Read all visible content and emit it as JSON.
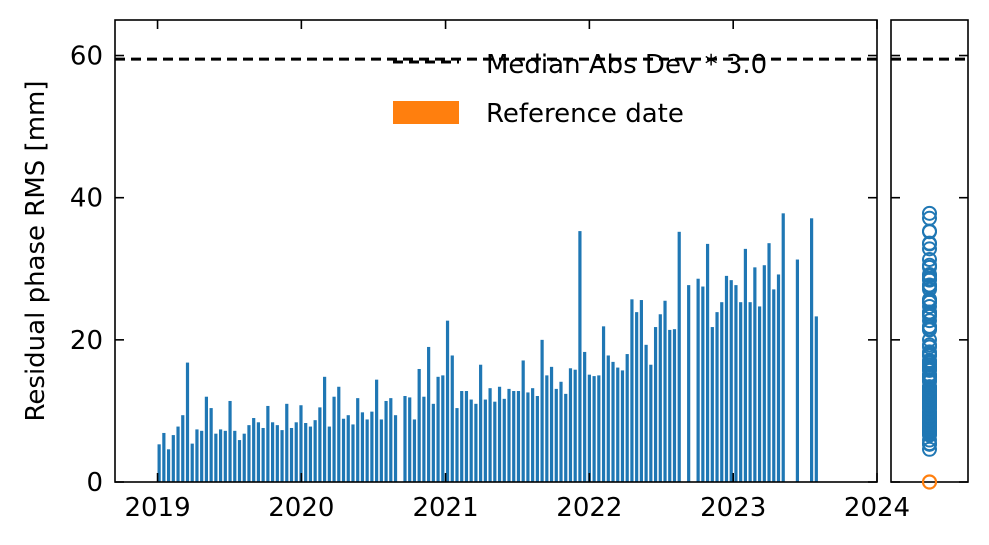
{
  "chart_data": {
    "type": "bar",
    "ylabel": "Residual phase RMS [mm]",
    "xlabel": "",
    "ylim": [
      0,
      65
    ],
    "xlim": [
      "2018-09-15",
      "2024-01-01"
    ],
    "x_ticks": [
      "2019",
      "2020",
      "2021",
      "2022",
      "2023",
      "2024"
    ],
    "y_ticks": [
      "0",
      "20",
      "40",
      "60"
    ],
    "threshold": {
      "label": "Median Abs Dev * 3.0",
      "value": 59.5,
      "style": "dashed",
      "color": "#000000"
    },
    "legend": [
      {
        "label": "Median Abs Dev * 3.0",
        "kind": "dashed-line",
        "color": "#000000"
      },
      {
        "label": "Reference date",
        "kind": "patch",
        "color": "#ff7f0e"
      }
    ],
    "legend_position": "top-right",
    "bar_color": "#1f77b4",
    "reference_color": "#ff7f0e",
    "series": [
      {
        "dates": [
          "2019-01-05",
          "2019-01-17",
          "2019-01-29",
          "2019-02-10",
          "2019-02-22",
          "2019-03-06",
          "2019-03-18",
          "2019-03-30",
          "2019-04-11",
          "2019-04-23",
          "2019-05-05",
          "2019-05-17",
          "2019-05-29",
          "2019-06-10",
          "2019-06-22",
          "2019-07-04",
          "2019-07-16",
          "2019-07-28",
          "2019-08-09",
          "2019-08-21",
          "2019-09-02",
          "2019-09-14",
          "2019-09-26",
          "2019-10-08",
          "2019-10-20",
          "2019-11-01",
          "2019-11-13",
          "2019-11-25",
          "2019-12-07",
          "2019-12-19",
          "2019-12-31",
          "2020-01-12",
          "2020-01-24",
          "2020-02-05",
          "2020-02-17",
          "2020-02-29",
          "2020-03-12",
          "2020-03-24",
          "2020-04-05",
          "2020-04-17",
          "2020-04-29",
          "2020-05-11",
          "2020-05-23",
          "2020-06-04",
          "2020-06-16",
          "2020-06-28",
          "2020-07-10",
          "2020-07-22",
          "2020-08-03",
          "2020-08-15",
          "2020-08-27",
          "2020-09-08",
          "2020-09-20",
          "2020-10-02",
          "2020-10-14",
          "2020-10-26",
          "2020-11-07",
          "2020-11-19",
          "2020-12-01",
          "2020-12-13",
          "2020-12-25",
          "2021-01-06",
          "2021-01-18",
          "2021-01-30",
          "2021-02-11",
          "2021-02-23",
          "2021-03-07",
          "2021-03-19",
          "2021-03-31",
          "2021-04-12",
          "2021-04-24",
          "2021-05-06",
          "2021-05-18",
          "2021-05-30",
          "2021-06-11",
          "2021-06-23",
          "2021-07-05",
          "2021-07-17",
          "2021-07-29",
          "2021-08-10",
          "2021-08-22",
          "2021-09-03",
          "2021-09-15",
          "2021-09-27",
          "2021-10-09",
          "2021-10-21",
          "2021-11-02",
          "2021-11-14",
          "2021-11-26",
          "2021-12-08",
          "2021-12-20",
          "2022-01-01",
          "2022-01-13",
          "2022-01-25",
          "2022-02-06",
          "2022-02-18",
          "2022-03-02",
          "2022-03-14",
          "2022-03-26",
          "2022-04-07",
          "2022-04-19",
          "2022-05-01",
          "2022-05-13",
          "2022-05-25",
          "2022-06-06",
          "2022-06-18",
          "2022-06-30",
          "2022-07-12",
          "2022-07-24",
          "2022-08-05",
          "2022-08-17",
          "2022-09-10",
          "2022-10-04",
          "2022-10-16",
          "2022-10-28",
          "2022-11-09",
          "2022-11-21",
          "2022-12-03",
          "2022-12-15",
          "2022-12-27",
          "2023-01-08",
          "2023-01-20",
          "2023-02-01",
          "2023-02-13",
          "2023-02-25",
          "2023-03-09",
          "2023-03-21",
          "2023-04-02",
          "2023-04-14",
          "2023-04-26",
          "2023-05-08",
          "2023-06-13",
          "2023-07-19",
          "2023-07-31",
          "2023-08-12",
          "2023-08-24",
          "2023-09-05",
          "2023-09-17",
          "2023-09-29",
          "2023-10-11",
          "2023-10-23"
        ],
        "values": [
          5.3,
          6.9,
          4.6,
          6.6,
          7.8,
          9.4,
          16.8,
          5.4,
          7.4,
          7.2,
          12.0,
          10.4,
          6.8,
          7.4,
          7.2,
          11.4,
          7.2,
          5.9,
          6.8,
          8.0,
          9.0,
          8.4,
          7.6,
          10.7,
          8.4,
          8.0,
          7.3,
          11.0,
          7.6,
          8.4,
          10.8,
          8.3,
          7.8,
          8.7,
          10.5,
          14.8,
          7.8,
          12.0,
          13.4,
          8.9,
          9.4,
          8.1,
          11.8,
          9.8,
          8.8,
          9.9,
          14.4,
          8.8,
          11.4,
          11.8,
          9.4,
          0.0,
          12.1,
          11.9,
          8.8,
          15.9,
          12.0,
          19.0,
          11.0,
          14.8,
          15.0,
          22.7,
          17.8,
          10.4,
          12.8,
          12.8,
          11.6,
          11.0,
          16.5,
          11.6,
          13.2,
          11.3,
          13.4,
          11.7,
          13.1,
          12.8,
          12.8,
          17.1,
          12.6,
          13.2,
          12.1,
          20.0,
          15.0,
          16.2,
          13.1,
          14.1,
          12.4,
          16.0,
          15.8,
          35.3,
          18.3,
          15.1,
          14.9,
          15.0,
          21.9,
          17.8,
          16.9,
          16.1,
          15.7,
          18.0,
          25.7,
          23.9,
          25.6,
          19.3,
          16.5,
          21.8,
          23.6,
          25.5,
          21.4,
          21.5,
          35.2,
          27.7,
          28.6,
          27.5,
          33.5,
          21.8,
          23.9,
          25.3,
          29.0,
          28.4,
          27.7,
          25.3,
          32.8,
          25.3,
          30.2,
          24.7,
          30.5,
          33.6,
          27.1,
          29.2,
          37.8,
          31.3,
          37.1,
          23.3,
          0.0,
          0.0,
          0.0,
          0.0,
          0.0,
          0.0,
          0.0
        ]
      }
    ],
    "side_panel": {
      "type": "scatter",
      "marker": "open-circle",
      "color": "#1f77b4",
      "reference_value": 0.0,
      "reference_color": "#ff7f0e",
      "threshold_value": 59.5
    }
  }
}
